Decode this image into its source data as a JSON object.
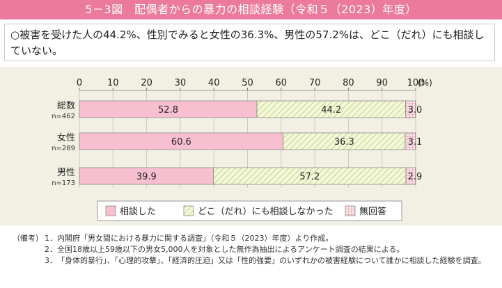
{
  "header": {
    "title": "5－3図　配偶者からの暴力の相談経験（令和５（2023）年度）"
  },
  "summary": {
    "text": "○被害を受けた人の44.2%、性別でみると女性の36.3%、男性の57.2%は、どこ（だれ）にも相談していない。"
  },
  "notes": {
    "head": "（備考）",
    "items": [
      {
        "num": "1．",
        "text": "内閣府「男女間における暴力に関する調査」（令和５（2023）年度）より作成。"
      },
      {
        "num": "2．",
        "text": "全国18歳以上59歳以下の男女5,000人を対象とした無作為抽出によるアンケート調査の結果による。"
      },
      {
        "num": "3．",
        "text": "「身体的暴行」、「心理的攻撃」、「経済的圧迫」又は「性的強要」のいずれかの被害経験について誰かに相談した経験を調査。"
      }
    ]
  },
  "colors": {
    "title_bg": "#ec7a9d",
    "consulted": "#f7bfd0",
    "not_consulted_bg": "#f3f8dc",
    "not_consulted_hatch": "#b8cc6a",
    "no_answer_bg": "#fbe6ea",
    "no_answer_grid": "#d97a8c",
    "panel_bg": "#f2efe3"
  },
  "chart_data": {
    "type": "bar",
    "orientation": "horizontal",
    "stacked": true,
    "unit_label": "(%)",
    "xlim": [
      0,
      100
    ],
    "xticks": [
      0,
      10,
      20,
      30,
      40,
      50,
      60,
      70,
      80,
      90,
      100
    ],
    "grid": true,
    "legend_position": "bottom",
    "categories": [
      {
        "label": "総数",
        "n": "n=462"
      },
      {
        "label": "女性",
        "n": "n=289"
      },
      {
        "label": "男性",
        "n": "n=173"
      }
    ],
    "series": [
      {
        "name": "相談した",
        "pattern": "solid",
        "values": [
          52.8,
          60.6,
          39.9
        ]
      },
      {
        "name": "どこ（だれ）にも相談しなかった",
        "pattern": "diagonal",
        "values": [
          44.2,
          36.3,
          57.2
        ]
      },
      {
        "name": "無回答",
        "pattern": "grid",
        "values": [
          3.0,
          3.1,
          2.9
        ]
      }
    ],
    "value_labels": [
      [
        "52.8",
        "44.2",
        "3.0"
      ],
      [
        "60.6",
        "36.3",
        "3.1"
      ],
      [
        "39.9",
        "57.2",
        "2.9"
      ]
    ]
  }
}
